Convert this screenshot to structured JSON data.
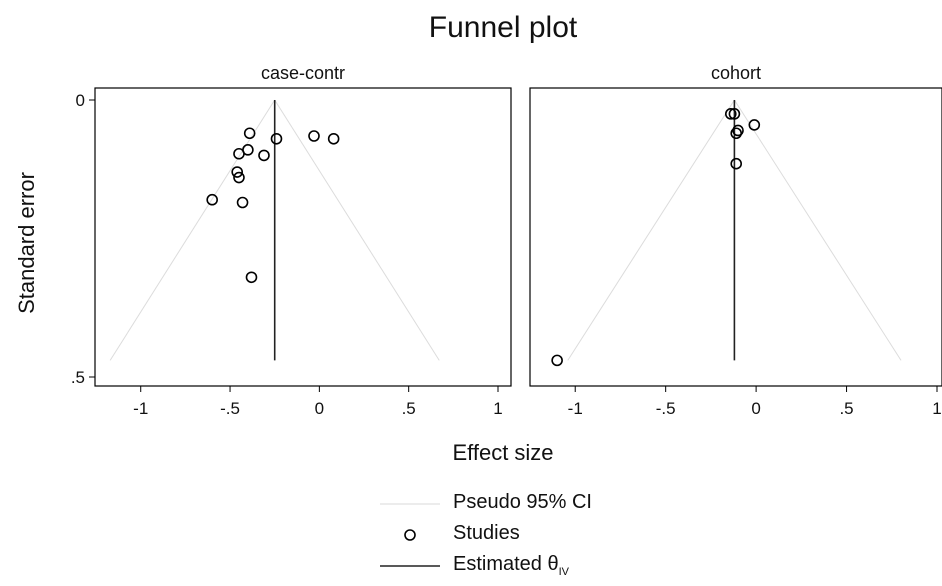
{
  "title": "Funnel plot",
  "colors": {
    "ci_line": "#dcdcdc",
    "axis": "#000000",
    "marker": "#000000",
    "estimate_line": "#222222"
  },
  "chart_data": [
    {
      "type": "scatter",
      "panel_title": "case-contr",
      "xlabel": "Effect size",
      "ylabel": "Standard error",
      "xlim": [
        -1.2,
        1.0
      ],
      "ylim": [
        0.5,
        0
      ],
      "y_inverted": true,
      "x_ticks": [
        "-1",
        "-.5",
        "0",
        ".5",
        "1"
      ],
      "x_tick_values": [
        -1,
        -0.5,
        0,
        0.5,
        1
      ],
      "y_ticks": [
        "0",
        ".5"
      ],
      "y_tick_values": [
        0,
        0.5
      ],
      "estimate": -0.25,
      "estimate_se_range": [
        0,
        0.47
      ],
      "pseudo_ci": {
        "center": -0.25,
        "se_max": 0.47
      },
      "studies": [
        {
          "x": -0.39,
          "y": 0.06
        },
        {
          "x": -0.24,
          "y": 0.07
        },
        {
          "x": -0.03,
          "y": 0.065
        },
        {
          "x": 0.08,
          "y": 0.07
        },
        {
          "x": -0.4,
          "y": 0.09
        },
        {
          "x": -0.45,
          "y": 0.097
        },
        {
          "x": -0.31,
          "y": 0.1
        },
        {
          "x": -0.46,
          "y": 0.13
        },
        {
          "x": -0.45,
          "y": 0.14
        },
        {
          "x": -0.6,
          "y": 0.18
        },
        {
          "x": -0.43,
          "y": 0.185
        },
        {
          "x": -0.38,
          "y": 0.32
        }
      ]
    },
    {
      "type": "scatter",
      "panel_title": "cohort",
      "xlabel": "Effect size",
      "ylabel": "Standard error",
      "xlim": [
        -1.25,
        1.0
      ],
      "ylim": [
        0.5,
        0
      ],
      "y_inverted": true,
      "x_ticks": [
        "-1",
        "-.5",
        "0",
        ".5",
        "1"
      ],
      "x_tick_values": [
        -1,
        -0.5,
        0,
        0.5,
        1
      ],
      "y_ticks": [
        "0",
        ".5"
      ],
      "y_tick_values": [
        0,
        0.5
      ],
      "estimate": -0.12,
      "estimate_se_range": [
        0,
        0.47
      ],
      "pseudo_ci": {
        "center": -0.12,
        "se_max": 0.47
      },
      "studies": [
        {
          "x": -0.14,
          "y": 0.025
        },
        {
          "x": -0.12,
          "y": 0.025
        },
        {
          "x": -0.01,
          "y": 0.045
        },
        {
          "x": -0.1,
          "y": 0.055
        },
        {
          "x": -0.11,
          "y": 0.06
        },
        {
          "x": -0.11,
          "y": 0.115
        },
        {
          "x": -1.1,
          "y": 0.47
        }
      ]
    }
  ],
  "legend": {
    "placement": "bottom",
    "items": [
      {
        "label": "Pseudo 95% CI",
        "symbol": "thin-line"
      },
      {
        "label": "Studies",
        "symbol": "hollow-circle"
      },
      {
        "label": "Estimated θ",
        "subscript": "IV",
        "symbol": "solid-line"
      }
    ]
  }
}
